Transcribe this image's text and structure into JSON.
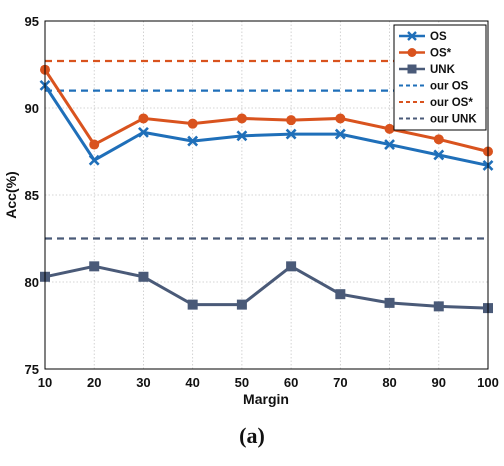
{
  "chart_data": {
    "type": "line",
    "x": [
      10,
      20,
      30,
      40,
      50,
      60,
      70,
      80,
      90,
      100
    ],
    "xlabel": "Margin",
    "ylabel": "Acc(%)",
    "xlim": [
      10,
      100
    ],
    "ylim": [
      75,
      95
    ],
    "xticks": [
      "10",
      "20",
      "30",
      "40",
      "50",
      "60",
      "70",
      "80",
      "90",
      "100"
    ],
    "yticks": [
      "75",
      "80",
      "85",
      "90",
      "95"
    ],
    "grid": true,
    "legend_position": "top-right",
    "caption": "(a)",
    "series": [
      {
        "name": "OS",
        "color": "#1f6fb9",
        "marker": "x",
        "style": "solid",
        "values": [
          91.3,
          87.0,
          88.6,
          88.1,
          88.4,
          88.5,
          88.5,
          87.9,
          87.3,
          86.7
        ]
      },
      {
        "name": "OS*",
        "color": "#d9531e",
        "marker": "circle",
        "style": "solid",
        "values": [
          92.2,
          87.9,
          89.4,
          89.1,
          89.4,
          89.3,
          89.4,
          88.8,
          88.2,
          87.5
        ]
      },
      {
        "name": "UNK",
        "color": "#4a5a78",
        "marker": "square",
        "style": "solid",
        "values": [
          80.3,
          80.9,
          80.3,
          78.7,
          78.7,
          80.9,
          79.3,
          78.8,
          78.6,
          78.5
        ]
      }
    ],
    "reference_lines": [
      {
        "name": "our OS",
        "color": "#1f6fb9",
        "style": "dashed",
        "value": 91.0
      },
      {
        "name": "our OS*",
        "color": "#d9531e",
        "style": "dashed",
        "value": 92.7
      },
      {
        "name": "our UNK",
        "color": "#4a5a78",
        "style": "dashed",
        "value": 82.5
      }
    ]
  }
}
